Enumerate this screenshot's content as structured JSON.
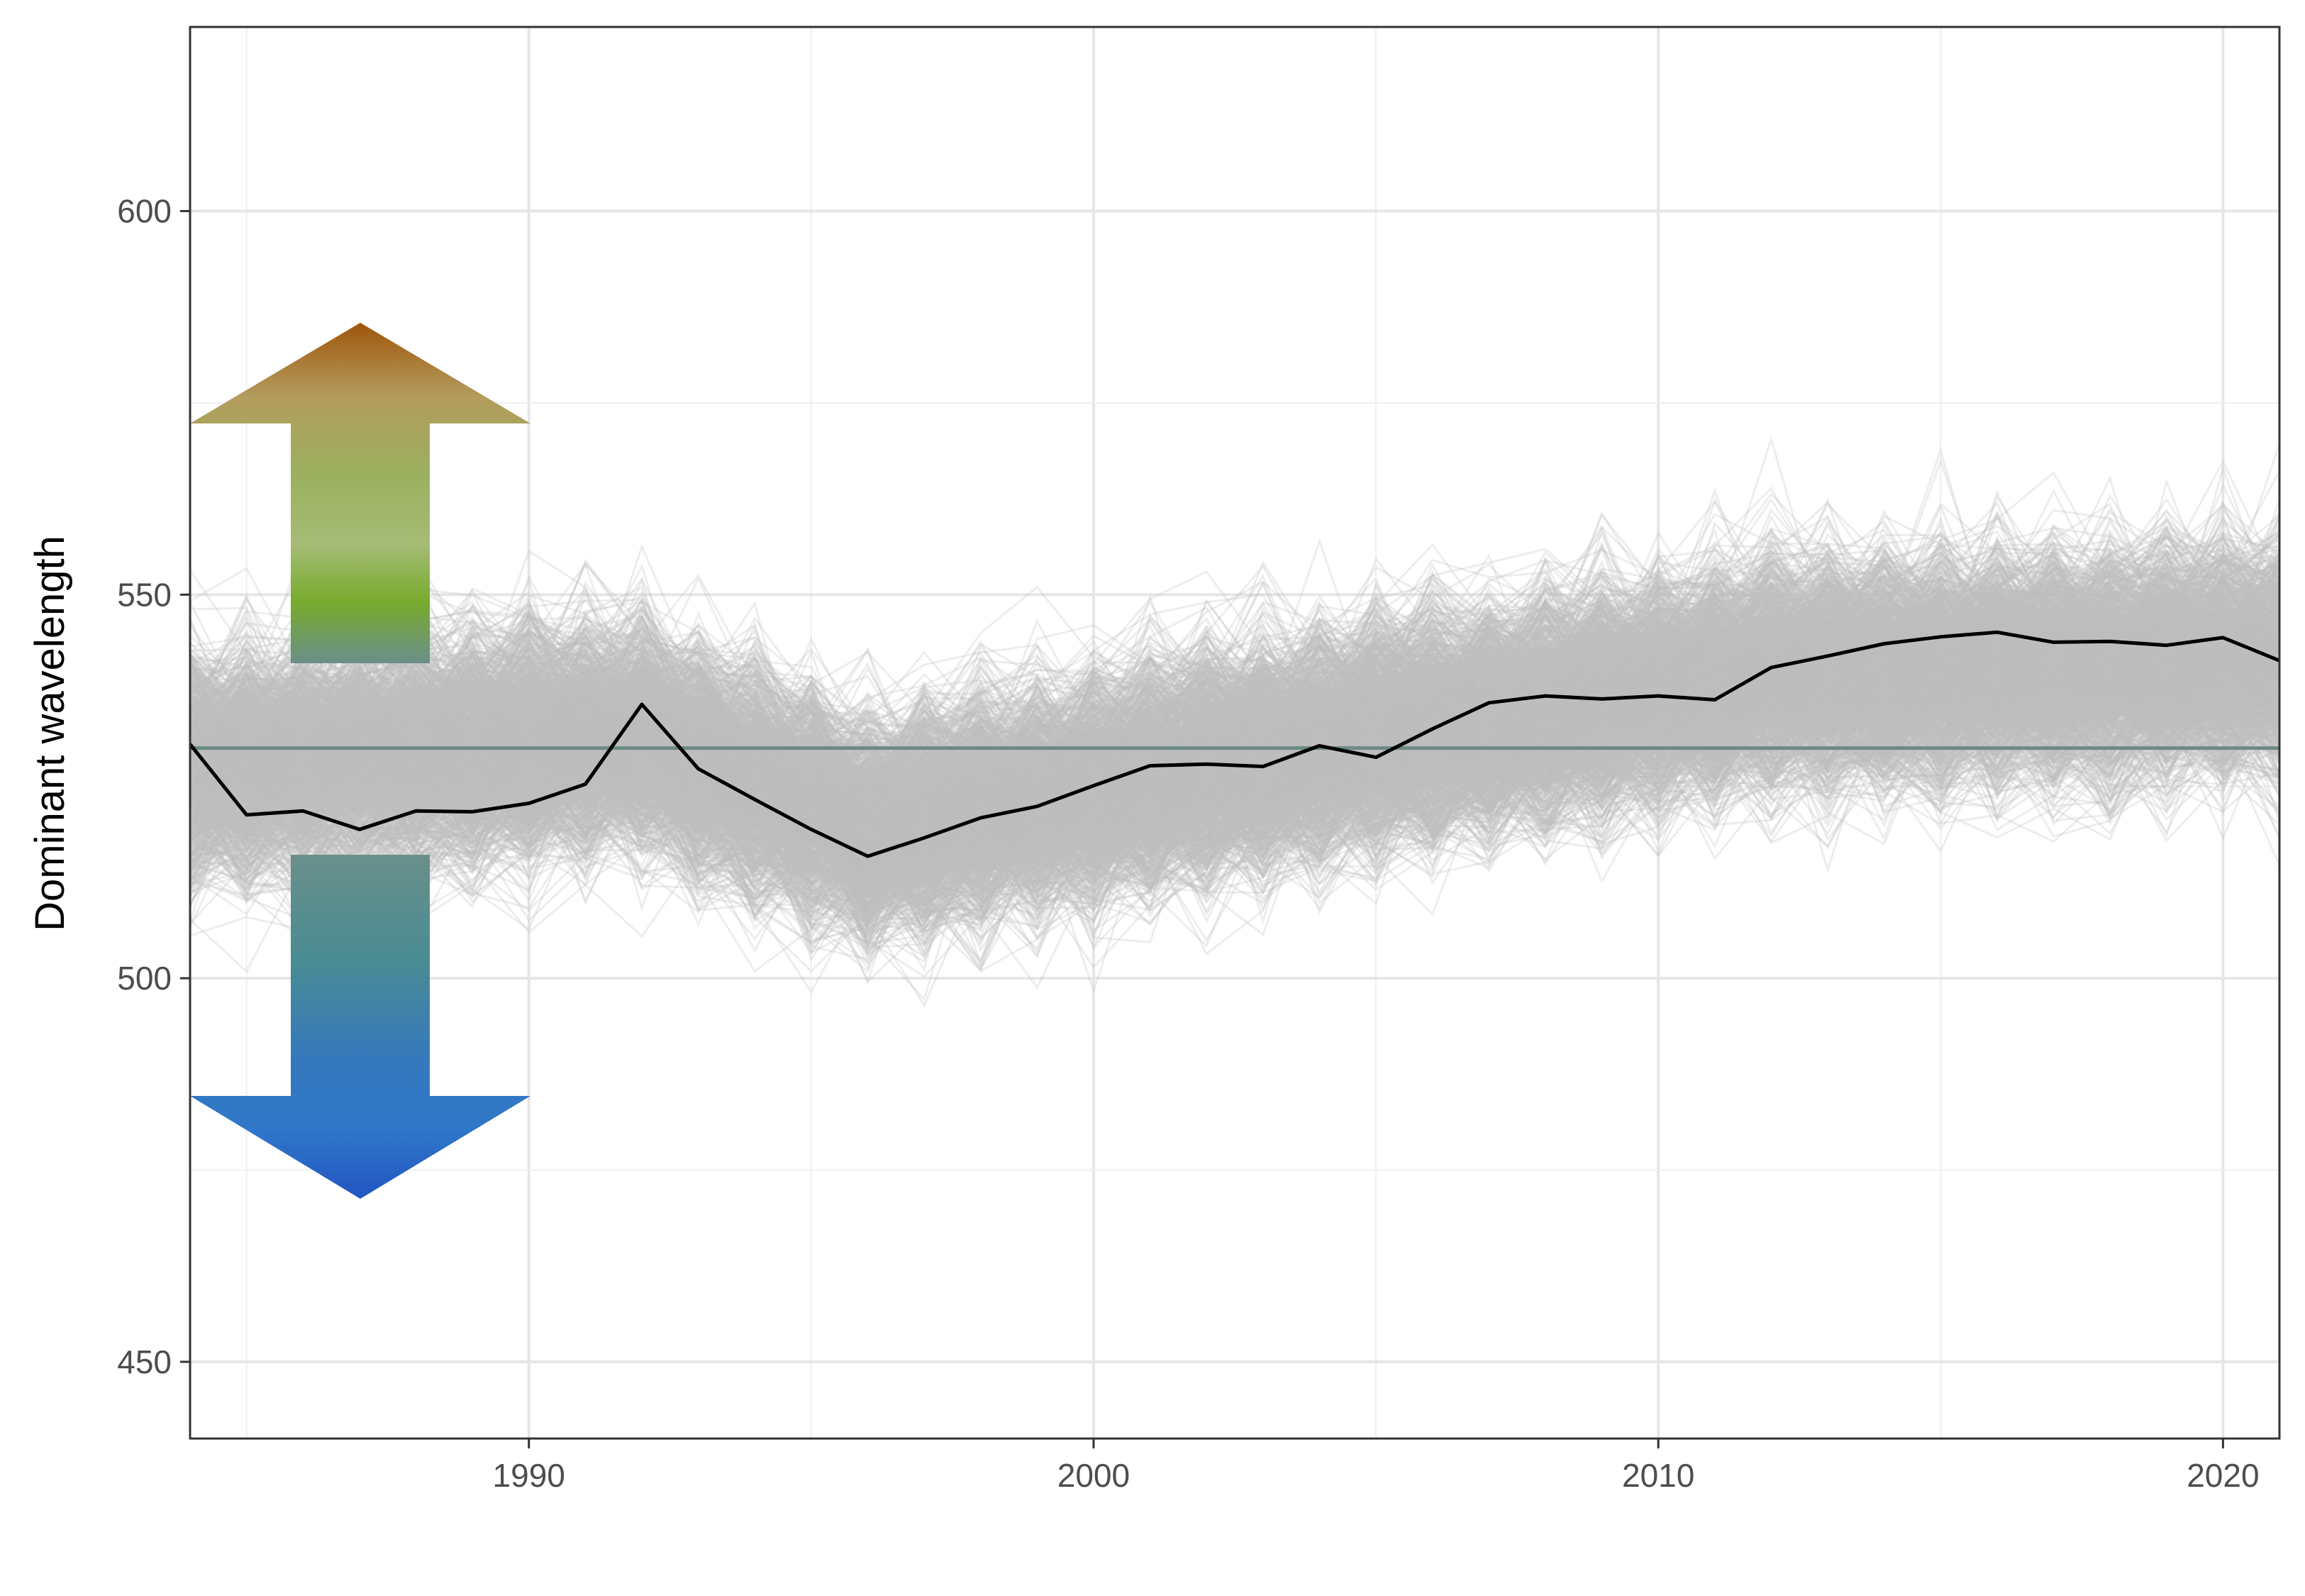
{
  "chart_data": {
    "type": "line",
    "title": "",
    "xlabel": "",
    "ylabel": "Dominant wavelength",
    "xlim": [
      1984,
      2021
    ],
    "ylim": [
      440,
      624
    ],
    "x_ticks": [
      1990,
      2000,
      2010,
      2020
    ],
    "x_tick_labels": [
      "1990",
      "2000",
      "2010",
      "2020"
    ],
    "y_ticks": [
      450,
      500,
      550,
      600
    ],
    "y_tick_labels": [
      "450",
      "500",
      "550",
      "600"
    ],
    "grid": true,
    "reference_line": {
      "y": 530,
      "color": "#6b8a85"
    },
    "background_series": {
      "description_count": 1200,
      "color": "#bdbdbd",
      "spread_center_by_year": {
        "x": [
          1984,
          1992,
          1996,
          2005,
          2012,
          2021
        ],
        "center": [
          528,
          532,
          520,
          532,
          540,
          542
        ]
      }
    },
    "series": [
      {
        "color": "#000000",
        "x": [
          1984,
          1985,
          1986,
          1987,
          1988,
          1989,
          1990,
          1991,
          1992,
          1993,
          1994,
          1995,
          1996,
          1997,
          1998,
          1999,
          2000,
          2001,
          2002,
          2003,
          2004,
          2005,
          2006,
          2007,
          2008,
          2009,
          2010,
          2011,
          2012,
          2013,
          2014,
          2015,
          2016,
          2017,
          2018,
          2019,
          2020,
          2021
        ],
        "y": [
          530.5,
          521.3,
          521.8,
          519.4,
          521.8,
          521.7,
          522.8,
          525.3,
          535.7,
          527.3,
          523.3,
          519.4,
          515.9,
          518.3,
          520.9,
          522.4,
          525.1,
          527.7,
          527.9,
          527.6,
          530.3,
          528.8,
          532.5,
          535.9,
          536.8,
          536.4,
          536.8,
          536.3,
          540.5,
          542.0,
          543.6,
          544.5,
          545.1,
          543.8,
          543.9,
          543.4,
          544.4,
          541.4
        ]
      }
    ],
    "annotations": [
      {
        "type": "arrow",
        "direction": "up",
        "gradient": [
          "#a0560b",
          "#b39c5e",
          "#9bb05e",
          "#a6bc76",
          "#77ab2c",
          "#6a8f8a"
        ]
      },
      {
        "type": "arrow",
        "direction": "down",
        "gradient": [
          "#6a8f8a",
          "#4a8c93",
          "#3578bd",
          "#2f77c9",
          "#2255c2"
        ]
      }
    ]
  }
}
